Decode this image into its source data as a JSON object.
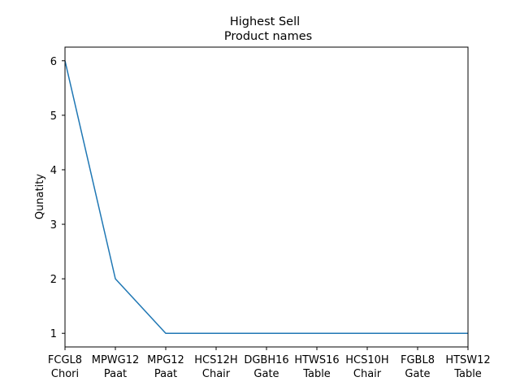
{
  "chart_data": {
    "type": "line",
    "title": "Highest Sell",
    "subtitle": "Product names",
    "xlabel": "",
    "ylabel": "Qunatity",
    "categories": [
      [
        "FCGL8",
        "Chori"
      ],
      [
        "MPWG12",
        "Paat"
      ],
      [
        "MPG12",
        "Paat"
      ],
      [
        "HCS12H",
        "Chair"
      ],
      [
        "DGBH16",
        "Gate"
      ],
      [
        "HTWS16",
        "Table"
      ],
      [
        "HCS10H",
        "Chair"
      ],
      [
        "FGBL8",
        "Gate"
      ],
      [
        "HTSW12",
        "Table"
      ]
    ],
    "values": [
      6,
      2,
      1,
      1,
      1,
      1,
      1,
      1,
      1
    ],
    "yticks": [
      "1",
      "2",
      "3",
      "4",
      "5",
      "6"
    ],
    "ylim": [
      0.75,
      6.25
    ],
    "line_color": "#1f77b4",
    "grid": false,
    "legend": "none"
  }
}
